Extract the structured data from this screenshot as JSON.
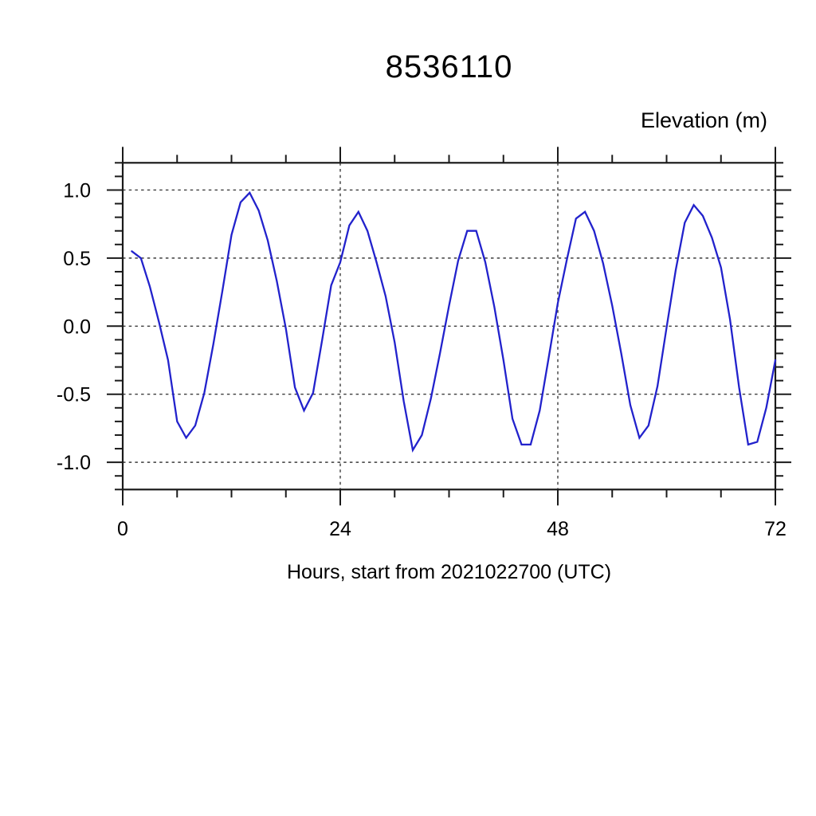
{
  "chart": {
    "title": "8536110",
    "ylabel": "Elevation (m)",
    "xlabel": "Hours, start from 2021022700 (UTC)"
  },
  "chart_data": {
    "type": "line",
    "title": "8536110",
    "xlabel": "Hours, start from 2021022700 (UTC)",
    "ylabel": "Elevation (m)",
    "legend_position": "none",
    "grid": "dashed-on-major",
    "line_color": "#2222cc",
    "axis_color": "#1a1a1a",
    "grid_color": "#3c3c3c",
    "xlim": [
      0,
      72
    ],
    "ylim": [
      -1.2,
      1.2
    ],
    "xticks_major": [
      0,
      24,
      48,
      72
    ],
    "xtick_labels": [
      "0",
      "24",
      "48",
      "72"
    ],
    "xtick_minor_step": 6,
    "yticks_major": [
      1.0,
      0.5,
      0.0,
      -0.5,
      -1.0
    ],
    "ytick_labels": [
      "1.0",
      "0.5",
      "0.0",
      "-0.5",
      "-1.0"
    ],
    "ytick_minor_step": 0.1,
    "xgrid_hours": [
      24,
      48
    ],
    "series_name": "elevation",
    "hours": [
      1,
      2,
      3,
      4,
      5,
      6,
      7,
      8,
      9,
      10,
      11,
      12,
      13,
      14,
      15,
      16,
      17,
      18,
      19,
      20,
      21,
      22,
      23,
      24,
      25,
      26,
      27,
      28,
      29,
      30,
      31,
      32,
      33,
      34,
      35,
      36,
      37,
      38,
      39,
      40,
      41,
      42,
      43,
      44,
      45,
      46,
      47,
      48,
      49,
      50,
      51,
      52,
      53,
      54,
      55,
      56,
      57,
      58,
      59,
      60,
      61,
      62,
      63,
      64,
      65,
      66,
      67,
      68,
      69,
      70,
      71,
      72
    ],
    "values": [
      0.55,
      0.5,
      0.29,
      0.03,
      -0.25,
      -0.7,
      -0.82,
      -0.73,
      -0.49,
      -0.13,
      0.26,
      0.67,
      0.91,
      0.98,
      0.85,
      0.63,
      0.33,
      -0.02,
      -0.45,
      -0.62,
      -0.49,
      -0.1,
      0.3,
      0.47,
      0.74,
      0.84,
      0.7,
      0.47,
      0.22,
      -0.12,
      -0.55,
      -0.91,
      -0.8,
      -0.53,
      -0.2,
      0.15,
      0.48,
      0.7,
      0.7,
      0.47,
      0.14,
      -0.25,
      -0.68,
      -0.87,
      -0.87,
      -0.62,
      -0.23,
      0.17,
      0.49,
      0.79,
      0.84,
      0.7,
      0.46,
      0.15,
      -0.2,
      -0.58,
      -0.82,
      -0.73,
      -0.44,
      -0.01,
      0.41,
      0.76,
      0.89,
      0.81,
      0.65,
      0.43,
      0.05,
      -0.45,
      -0.87,
      -0.85,
      -0.6,
      -0.25
    ]
  }
}
